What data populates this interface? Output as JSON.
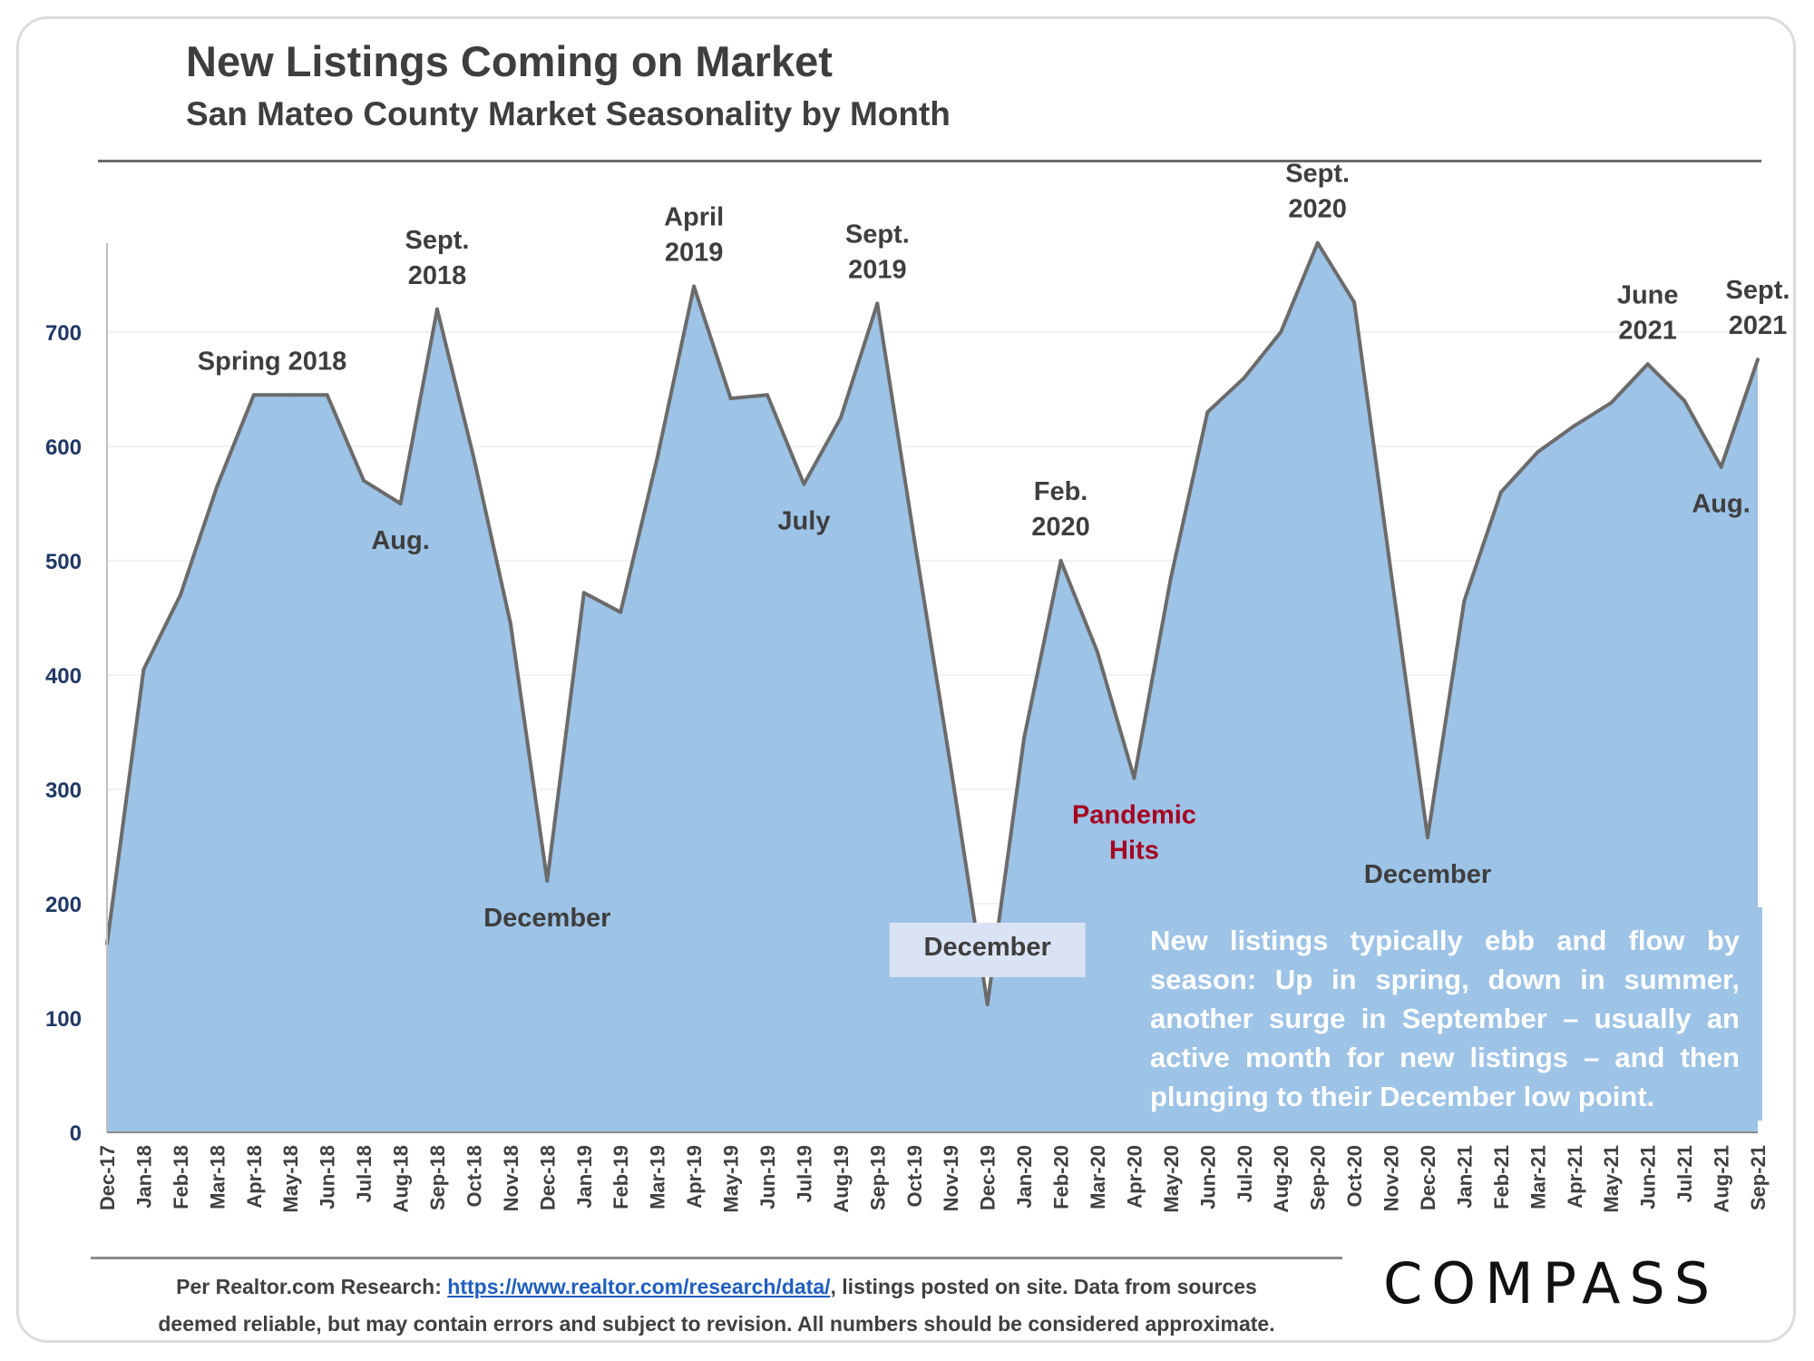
{
  "header": {
    "title": "New Listings Coming on Market",
    "subtitle": "San Mateo County Market Seasonality by Month"
  },
  "chart_data": {
    "type": "area",
    "x": [
      "Dec-17",
      "Jan-18",
      "Feb-18",
      "Mar-18",
      "Apr-18",
      "May-18",
      "Jun-18",
      "Jul-18",
      "Aug-18",
      "Sep-18",
      "Oct-18",
      "Nov-18",
      "Dec-18",
      "Jan-19",
      "Feb-19",
      "Mar-19",
      "Apr-19",
      "May-19",
      "Jun-19",
      "Jul-19",
      "Aug-19",
      "Sep-19",
      "Oct-19",
      "Nov-19",
      "Dec-19",
      "Jan-20",
      "Feb-20",
      "Mar-20",
      "Apr-20",
      "May-20",
      "Jun-20",
      "Jul-20",
      "Aug-20",
      "Sep-20",
      "Oct-20",
      "Nov-20",
      "Dec-20",
      "Jan-21",
      "Feb-21",
      "Mar-21",
      "Apr-21",
      "May-21",
      "Jun-21",
      "Jul-21",
      "Aug-21",
      "Sep-21"
    ],
    "series": [
      {
        "values": [
          165,
          405,
          470,
          565,
          645,
          645,
          645,
          570,
          550,
          720,
          590,
          445,
          220,
          472,
          455,
          590,
          740,
          642,
          645,
          567,
          625,
          725,
          520,
          320,
          112,
          345,
          500,
          420,
          310,
          485,
          630,
          660,
          700,
          778,
          726,
          490,
          258,
          465,
          560,
          595,
          618,
          638,
          672,
          640,
          582,
          676
        ]
      }
    ],
    "ylim": [
      0,
      780
    ],
    "yticks": [
      0,
      100,
      200,
      300,
      400,
      500,
      600,
      700
    ],
    "grid": true,
    "colors": {
      "fill": "#9dc3e6",
      "line": "#6b6b6b",
      "label": "#3e3e3e",
      "highlight": "#a50021",
      "axis_text": "#203864"
    },
    "annotations": [
      {
        "idx": 4.5,
        "value": 645,
        "lines": [
          "Spring 2018"
        ],
        "pos": "above"
      },
      {
        "idx": 8,
        "value": 550,
        "lines": [
          "Aug."
        ],
        "pos": "below"
      },
      {
        "idx": 9,
        "value": 720,
        "lines": [
          "Sept.",
          "2018"
        ],
        "pos": "above"
      },
      {
        "idx": 12,
        "value": 220,
        "lines": [
          "December"
        ],
        "pos": "below"
      },
      {
        "idx": 16,
        "value": 740,
        "lines": [
          "April",
          "2019"
        ],
        "pos": "above"
      },
      {
        "idx": 19,
        "value": 567,
        "lines": [
          "July"
        ],
        "pos": "below"
      },
      {
        "idx": 21,
        "value": 725,
        "lines": [
          "Sept.",
          "2019"
        ],
        "pos": "above"
      },
      {
        "idx": 24,
        "value": 185,
        "lines": [
          "December"
        ],
        "pos": "boxed"
      },
      {
        "idx": 26,
        "value": 500,
        "lines": [
          "Feb.",
          "2020"
        ],
        "pos": "above"
      },
      {
        "idx": 28,
        "value": 310,
        "lines": [
          "Pandemic",
          "Hits"
        ],
        "pos": "below",
        "highlight": true
      },
      {
        "idx": 33,
        "value": 778,
        "lines": [
          "Sept.",
          "2020"
        ],
        "pos": "above"
      },
      {
        "idx": 36,
        "value": 258,
        "lines": [
          "December"
        ],
        "pos": "below"
      },
      {
        "idx": 42,
        "value": 672,
        "lines": [
          "June",
          "2021"
        ],
        "pos": "above"
      },
      {
        "idx": 44,
        "value": 582,
        "lines": [
          "Aug."
        ],
        "pos": "below"
      },
      {
        "idx": 45,
        "value": 676,
        "lines": [
          "Sept.",
          "2021"
        ],
        "pos": "above"
      }
    ]
  },
  "note": {
    "text": "New listings typically ebb and flow by season: Up in spring, down in summer, another surge in September – usually an active month for new listings – and then plunging to their December low point."
  },
  "footer": {
    "prefix": "Per Realtor.com Research: ",
    "link": "https://www.realtor.com/research/data/",
    "line1_suffix": ", listings posted on site. Data from sources",
    "line2": "deemed reliable, but may contain errors and subject to revision. All numbers should be considered approximate."
  },
  "brand": {
    "logo": "COMPASS"
  }
}
